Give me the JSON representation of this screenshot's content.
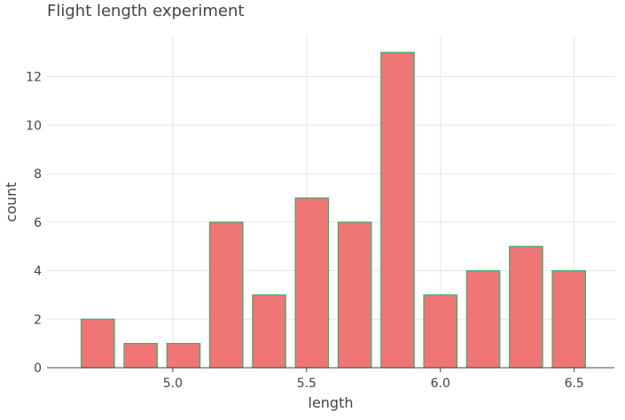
{
  "chart_data": {
    "type": "bar",
    "title": "Flight length experiment",
    "xlabel": "length",
    "ylabel": "count",
    "bin_width": 0.16,
    "bins": [
      {
        "start": 4.64,
        "end": 4.8,
        "count": 2
      },
      {
        "start": 4.8,
        "end": 4.96,
        "count": 1
      },
      {
        "start": 4.96,
        "end": 5.12,
        "count": 1
      },
      {
        "start": 5.12,
        "end": 5.28,
        "count": 6
      },
      {
        "start": 5.28,
        "end": 5.44,
        "count": 3
      },
      {
        "start": 5.44,
        "end": 5.6,
        "count": 7
      },
      {
        "start": 5.6,
        "end": 5.76,
        "count": 6
      },
      {
        "start": 5.76,
        "end": 5.92,
        "count": 13
      },
      {
        "start": 5.92,
        "end": 6.08,
        "count": 3
      },
      {
        "start": 6.08,
        "end": 6.24,
        "count": 4
      },
      {
        "start": 6.24,
        "end": 6.4,
        "count": 5
      },
      {
        "start": 6.4,
        "end": 6.56,
        "count": 4
      }
    ],
    "xlim": [
      4.53,
      6.65
    ],
    "ylim": [
      0,
      13.7
    ],
    "x_ticks": [
      5.0,
      5.5,
      6.0,
      6.5
    ],
    "x_tick_labels": [
      "5.0",
      "5.5",
      "6.0",
      "6.5"
    ],
    "y_ticks": [
      0,
      2,
      4,
      6,
      8,
      10,
      12
    ],
    "y_tick_labels": [
      "0",
      "2",
      "4",
      "6",
      "8",
      "10",
      "12"
    ],
    "grid": true,
    "colors": {
      "bar_fill": "#f07575",
      "bar_stroke": "#3dab6e",
      "grid": "#e6e6e6",
      "axis": "#444444",
      "text": "#444444"
    }
  }
}
